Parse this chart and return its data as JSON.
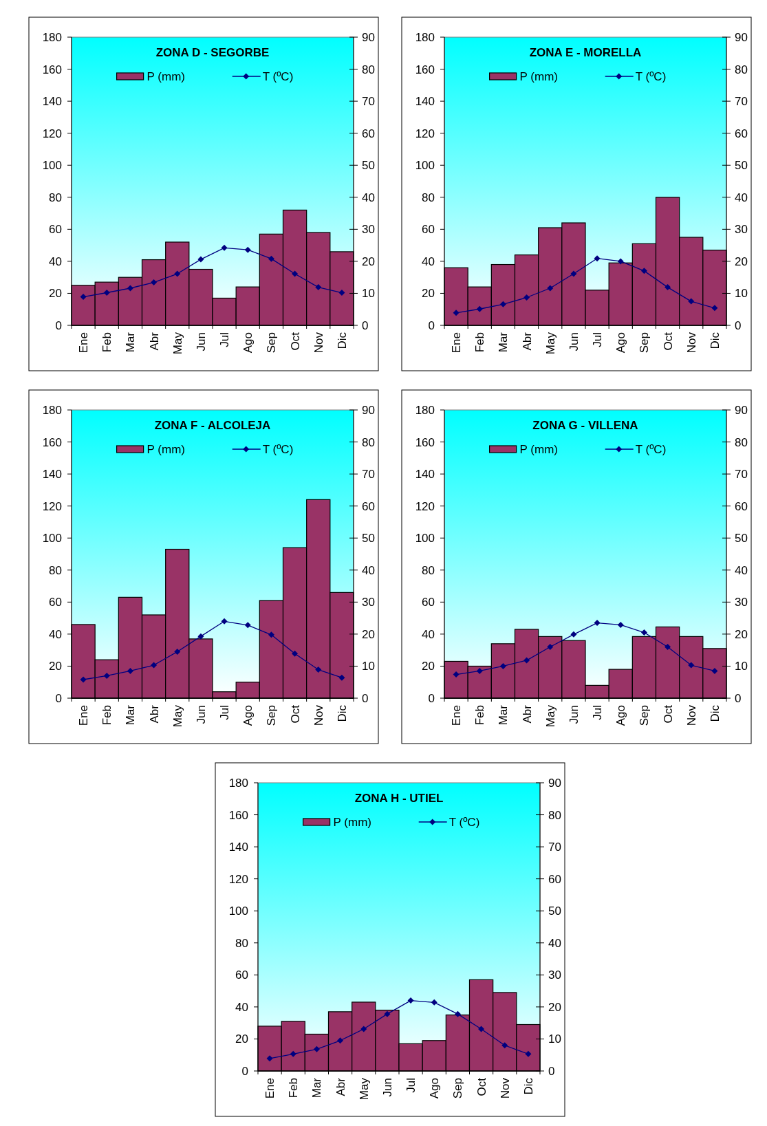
{
  "chart_data": [
    {
      "type": "bar",
      "title": "ZONA D - SEGORBE",
      "categories": [
        "Ene",
        "Feb",
        "Mar",
        "Abr",
        "May",
        "Jun",
        "Jul",
        "Ago",
        "Sep",
        "Oct",
        "Nov",
        "Dic"
      ],
      "series": [
        {
          "name": "P (mm)",
          "color": "#993366",
          "values": [
            25,
            27,
            30,
            41,
            52,
            35,
            17,
            24,
            57,
            72,
            58,
            46
          ]
        },
        {
          "name": "T (ºC)",
          "type": "line",
          "axis": "y2",
          "color": "#000080",
          "marker": "diamond",
          "values": [
            8.9,
            10.2,
            11.6,
            13.4,
            16.1,
            20.6,
            24.2,
            23.6,
            20.8,
            16.1,
            11.9,
            10.2
          ]
        }
      ],
      "ylim": [
        0,
        180
      ],
      "yticks": [
        0,
        20,
        40,
        60,
        80,
        100,
        120,
        140,
        160,
        180
      ],
      "y2lim": [
        0,
        90
      ],
      "y2ticks": [
        0,
        10,
        20,
        30,
        40,
        50,
        60,
        70,
        80,
        90
      ],
      "legend": "top",
      "grid": false
    },
    {
      "type": "bar",
      "title": "ZONA E - MORELLA",
      "categories": [
        "Ene",
        "Feb",
        "Mar",
        "Abr",
        "May",
        "Jun",
        "Jul",
        "Ago",
        "Sep",
        "Oct",
        "Nov",
        "Dic"
      ],
      "series": [
        {
          "name": "P (mm)",
          "color": "#993366",
          "values": [
            36,
            24,
            38,
            44,
            61,
            64,
            22,
            39,
            51,
            80,
            55,
            47
          ]
        },
        {
          "name": "T (ºC)",
          "type": "line",
          "axis": "y2",
          "color": "#000080",
          "marker": "diamond",
          "values": [
            3.9,
            5.1,
            6.6,
            8.7,
            11.6,
            16.1,
            20.9,
            20.0,
            17.0,
            11.9,
            7.5,
            5.4
          ]
        }
      ],
      "ylim": [
        0,
        180
      ],
      "yticks": [
        0,
        20,
        40,
        60,
        80,
        100,
        120,
        140,
        160,
        180
      ],
      "y2lim": [
        0,
        90
      ],
      "y2ticks": [
        0,
        10,
        20,
        30,
        40,
        50,
        60,
        70,
        80,
        90
      ],
      "legend": "top",
      "grid": false
    },
    {
      "type": "bar",
      "title": "ZONA F - ALCOLEJA",
      "categories": [
        "Ene",
        "Feb",
        "Mar",
        "Abr",
        "May",
        "Jun",
        "Jul",
        "Ago",
        "Sep",
        "Oct",
        "Nov",
        "Dic"
      ],
      "series": [
        {
          "name": "P (mm)",
          "color": "#993366",
          "values": [
            46,
            24,
            63,
            52,
            93,
            37,
            4,
            10,
            61,
            94,
            124,
            66
          ]
        },
        {
          "name": "T (ºC)",
          "type": "line",
          "axis": "y2",
          "color": "#000080",
          "marker": "diamond",
          "values": [
            5.8,
            7.0,
            8.5,
            10.3,
            14.5,
            19.3,
            24.0,
            22.8,
            19.8,
            13.9,
            8.9,
            6.4
          ]
        }
      ],
      "ylim": [
        0,
        180
      ],
      "yticks": [
        0,
        20,
        40,
        60,
        80,
        100,
        120,
        140,
        160,
        180
      ],
      "y2lim": [
        0,
        90
      ],
      "y2ticks": [
        0,
        10,
        20,
        30,
        40,
        50,
        60,
        70,
        80,
        90
      ],
      "legend": "top",
      "grid": false
    },
    {
      "type": "bar",
      "title": "ZONA G - VILLENA",
      "categories": [
        "Ene",
        "Feb",
        "Mar",
        "Abr",
        "May",
        "Jun",
        "Jul",
        "Ago",
        "Sep",
        "Oct",
        "Nov",
        "Dic"
      ],
      "series": [
        {
          "name": "P (mm)",
          "color": "#993366",
          "values": [
            23,
            20,
            34,
            43,
            38.5,
            36,
            8,
            18,
            38.5,
            44.5,
            38.5,
            31
          ]
        },
        {
          "name": "T (ºC)",
          "type": "line",
          "axis": "y2",
          "color": "#000080",
          "marker": "diamond",
          "values": [
            7.4,
            8.5,
            10.0,
            11.8,
            16.0,
            19.9,
            23.5,
            22.9,
            20.5,
            16.0,
            10.3,
            8.5
          ]
        }
      ],
      "ylim": [
        0,
        180
      ],
      "yticks": [
        0,
        20,
        40,
        60,
        80,
        100,
        120,
        140,
        160,
        180
      ],
      "y2lim": [
        0,
        90
      ],
      "y2ticks": [
        0,
        10,
        20,
        30,
        40,
        50,
        60,
        70,
        80,
        90
      ],
      "legend": "top",
      "grid": false
    },
    {
      "type": "bar",
      "title": "ZONA H - UTIEL",
      "categories": [
        "Ene",
        "Feb",
        "Mar",
        "Abr",
        "May",
        "Jun",
        "Jul",
        "Ago",
        "Sep",
        "Oct",
        "Nov",
        "Dic"
      ],
      "series": [
        {
          "name": "P (mm)",
          "color": "#993366",
          "values": [
            28,
            31,
            23,
            37,
            43,
            38,
            17,
            19,
            35,
            57,
            49,
            29
          ]
        },
        {
          "name": "T (ºC)",
          "type": "line",
          "axis": "y2",
          "color": "#000080",
          "marker": "diamond",
          "values": [
            3.9,
            5.3,
            6.8,
            9.5,
            13.1,
            17.8,
            22.0,
            21.4,
            17.8,
            13.1,
            8.0,
            5.3
          ]
        }
      ],
      "ylim": [
        0,
        180
      ],
      "yticks": [
        0,
        20,
        40,
        60,
        80,
        100,
        120,
        140,
        160,
        180
      ],
      "y2lim": [
        0,
        90
      ],
      "y2ticks": [
        0,
        10,
        20,
        30,
        40,
        50,
        60,
        70,
        80,
        90
      ],
      "legend": "top",
      "grid": false
    }
  ]
}
